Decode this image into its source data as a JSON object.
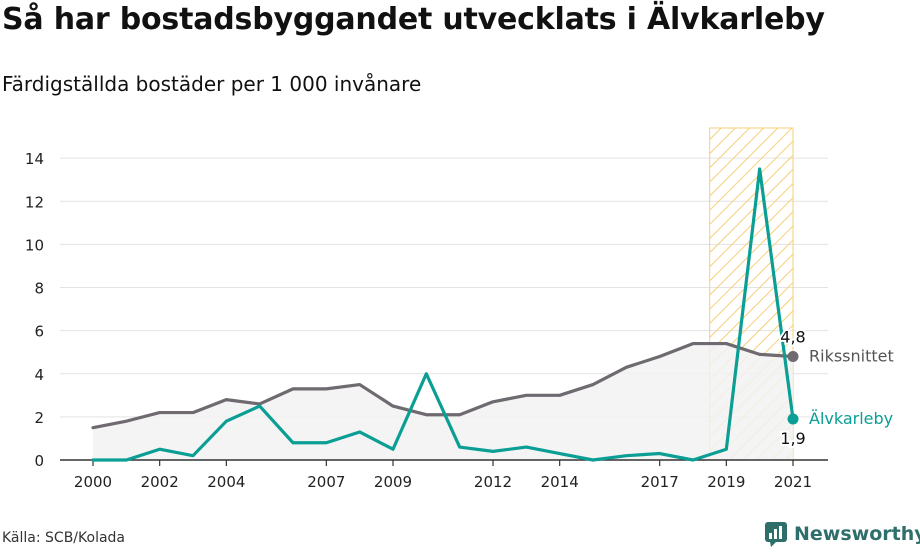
{
  "header": {
    "title": "Så har bostadsbyggandet utvecklats i Älvkarleby",
    "subtitle": "Färdigställda bostäder per 1 000 invånare"
  },
  "footer": {
    "source": "Källa: SCB/Kolada",
    "brand": "Newsworthy"
  },
  "chart_data": {
    "type": "line",
    "x": [
      2000,
      2001,
      2002,
      2003,
      2004,
      2005,
      2006,
      2007,
      2008,
      2009,
      2010,
      2011,
      2012,
      2013,
      2014,
      2015,
      2016,
      2017,
      2018,
      2019,
      2020,
      2021
    ],
    "x_tick_labels": [
      "2000",
      "2002",
      "2004",
      "2007",
      "2009",
      "2012",
      "2014",
      "2017",
      "2019",
      "2021"
    ],
    "y_ticks": [
      "0",
      "2",
      "4",
      "6",
      "8",
      "10",
      "12",
      "14"
    ],
    "ylim": [
      0,
      15.4
    ],
    "grid": "horizontal",
    "highlight_range": [
      2018.5,
      2021
    ],
    "series": [
      {
        "name": "Rikssnittet",
        "color": "#6e6a70",
        "fill": "#f2f2f2",
        "values": [
          1.5,
          1.8,
          2.2,
          2.2,
          2.8,
          2.6,
          3.3,
          3.3,
          3.5,
          2.5,
          2.1,
          2.1,
          2.7,
          3.0,
          3.0,
          3.5,
          4.3,
          4.8,
          5.4,
          5.4,
          4.9,
          4.8
        ],
        "end_label": "4,8"
      },
      {
        "name": "Älvkarleby",
        "color": "#0a9e94",
        "values": [
          0.0,
          0.0,
          0.5,
          0.2,
          1.8,
          2.5,
          0.8,
          0.8,
          1.3,
          0.5,
          4.0,
          0.6,
          0.4,
          0.6,
          0.3,
          0.0,
          0.2,
          0.3,
          0.0,
          0.5,
          13.5,
          1.9
        ],
        "end_label": "1,9"
      }
    ]
  }
}
